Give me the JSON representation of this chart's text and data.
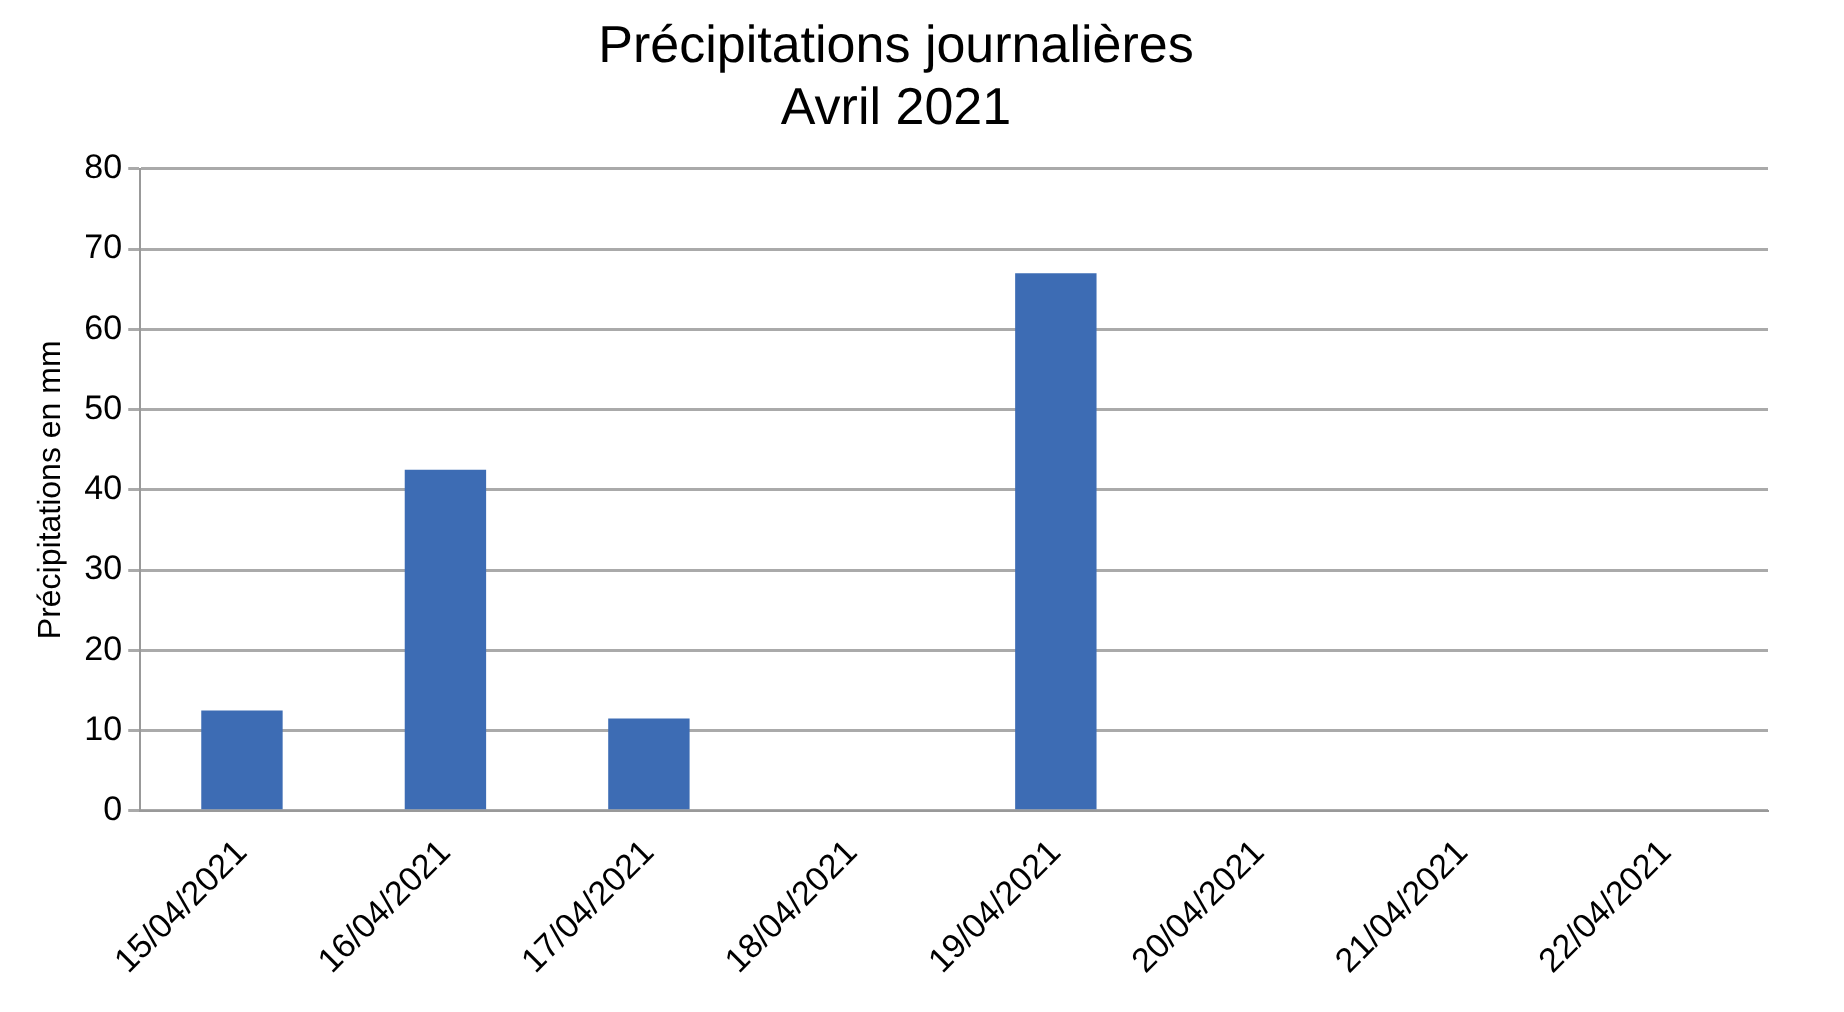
{
  "chart_data": {
    "type": "bar",
    "title": [
      "Précipitations journalières",
      "Avril 2021"
    ],
    "ylabel": "Précipitations en mm",
    "categories": [
      "15/04/2021",
      "16/04/2021",
      "17/04/2021",
      "18/04/2021",
      "19/04/2021",
      "20/04/2021",
      "21/04/2021",
      "22/04/2021"
    ],
    "values": [
      12.5,
      42.5,
      11.5,
      0,
      67,
      0,
      0,
      0
    ],
    "color": "#3d6cb4",
    "ylim": [
      0,
      80
    ],
    "yticks": [
      0,
      10,
      20,
      30,
      40,
      50,
      60,
      70,
      80
    ],
    "grid": "y",
    "legend": false
  }
}
